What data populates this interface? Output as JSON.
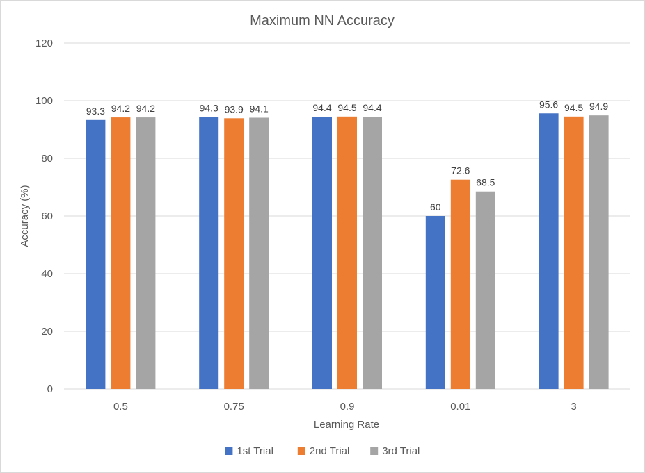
{
  "chart_data": {
    "type": "bar",
    "title": "Maximum NN Accuracy",
    "xlabel": "Learning Rate",
    "ylabel": "Accuracy (%)",
    "categories": [
      "0.5",
      "0.75",
      "0.9",
      "0.01",
      "3"
    ],
    "series": [
      {
        "name": "1st Trial",
        "color": "#4472c4",
        "values": [
          93.3,
          94.3,
          94.4,
          60,
          95.6
        ]
      },
      {
        "name": "2nd Trial",
        "color": "#ed7d31",
        "values": [
          94.2,
          93.9,
          94.5,
          72.6,
          94.5
        ]
      },
      {
        "name": "3rd Trial",
        "color": "#a5a5a5",
        "values": [
          94.2,
          94.1,
          94.4,
          68.5,
          94.9
        ]
      }
    ],
    "ylim": [
      0,
      120
    ],
    "yticks": [
      0,
      20,
      40,
      60,
      80,
      100,
      120
    ],
    "grid": true,
    "legend_position": "bottom"
  }
}
